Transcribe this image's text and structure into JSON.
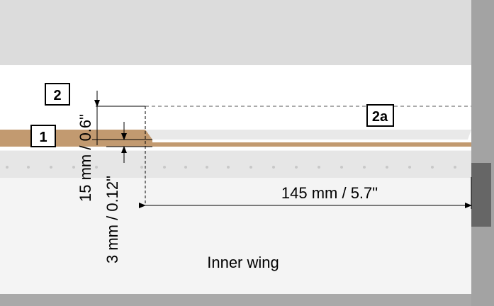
{
  "labels": {
    "box_2": "2",
    "box_1": "1",
    "box_2a": "2a"
  },
  "dimensions": {
    "height_total": "15 mm / 0.6\"",
    "height_base": "3 mm / 0.12\"",
    "length": "145 mm / 5.7\""
  },
  "caption": "Inner wing"
}
